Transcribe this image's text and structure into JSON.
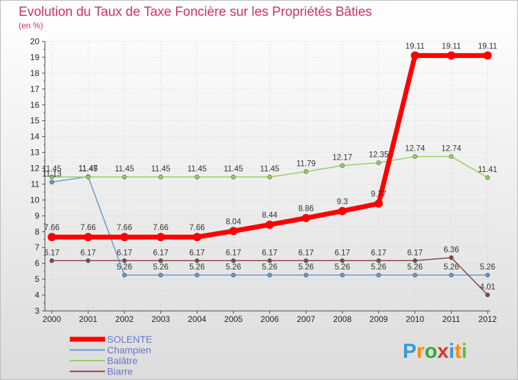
{
  "chart_data": {
    "type": "line",
    "title": "Evolution du Taux de Taxe Foncière sur les Propriétés Bâties",
    "subtitle": "(en %)",
    "xlabel": "",
    "ylabel": "",
    "categories": [
      "2000",
      "2001",
      "2002",
      "2003",
      "2004",
      "2005",
      "2006",
      "2007",
      "2008",
      "2009",
      "2010",
      "2011",
      "2012"
    ],
    "ylim": [
      3,
      20
    ],
    "yticks": [
      "3",
      "4",
      "5",
      "6",
      "7",
      "8",
      "9",
      "10",
      "11",
      "12",
      "13",
      "14",
      "15",
      "16",
      "17",
      "18",
      "19",
      "20"
    ],
    "grid": true,
    "legend_position": "bottom-left",
    "series": [
      {
        "name": "SOLENTE",
        "color": "#ff0000",
        "values": [
          7.66,
          7.66,
          7.66,
          7.66,
          7.66,
          8.04,
          8.44,
          8.86,
          9.3,
          9.77,
          19.11,
          19.11,
          19.11
        ],
        "labels": [
          "7.66",
          "7.66",
          "7.66",
          "7.66",
          "7.66",
          "8.04",
          "8.44",
          "8.86",
          "9.3",
          "9.77",
          "19.11",
          "19.11",
          "19.11"
        ]
      },
      {
        "name": "Champien",
        "color": "#6699cc",
        "values": [
          11.13,
          11.47,
          5.26,
          5.26,
          5.26,
          5.26,
          5.26,
          5.26,
          5.26,
          5.26,
          5.26,
          5.26,
          5.26
        ],
        "labels": [
          "11.13",
          "11.47",
          "5.26",
          "5.26",
          "5.26",
          "5.26",
          "5.26",
          "5.26",
          "5.26",
          "5.26",
          "5.26",
          "5.26",
          "5.26"
        ]
      },
      {
        "name": "Balâtre",
        "color": "#99cc66",
        "values": [
          11.45,
          11.45,
          11.45,
          11.45,
          11.45,
          11.45,
          11.45,
          11.79,
          12.17,
          12.35,
          12.74,
          12.74,
          11.41
        ],
        "labels": [
          "11.45",
          "11.45",
          "11.45",
          "11.45",
          "11.45",
          "11.45",
          "11.45",
          "11.79",
          "12.17",
          "12.35",
          "12.74",
          "12.74",
          "11.41"
        ]
      },
      {
        "name": "Biarre",
        "color": "#884444",
        "values": [
          6.17,
          6.17,
          6.17,
          6.17,
          6.17,
          6.17,
          6.17,
          6.17,
          6.17,
          6.17,
          6.17,
          6.36,
          4.01
        ],
        "labels": [
          "6.17",
          "6.17",
          "6.17",
          "6.17",
          "6.17",
          "6.17",
          "6.17",
          "6.17",
          "6.17",
          "6.17",
          "6.17",
          "6.36",
          "4.01"
        ]
      }
    ]
  },
  "branding": {
    "logo_text": "Proxiti",
    "logo_colors": [
      "#3399dd",
      "#ff8800",
      "#33aa33",
      "#dd3333",
      "#3399dd",
      "#ff8800",
      "#66bb33"
    ]
  }
}
